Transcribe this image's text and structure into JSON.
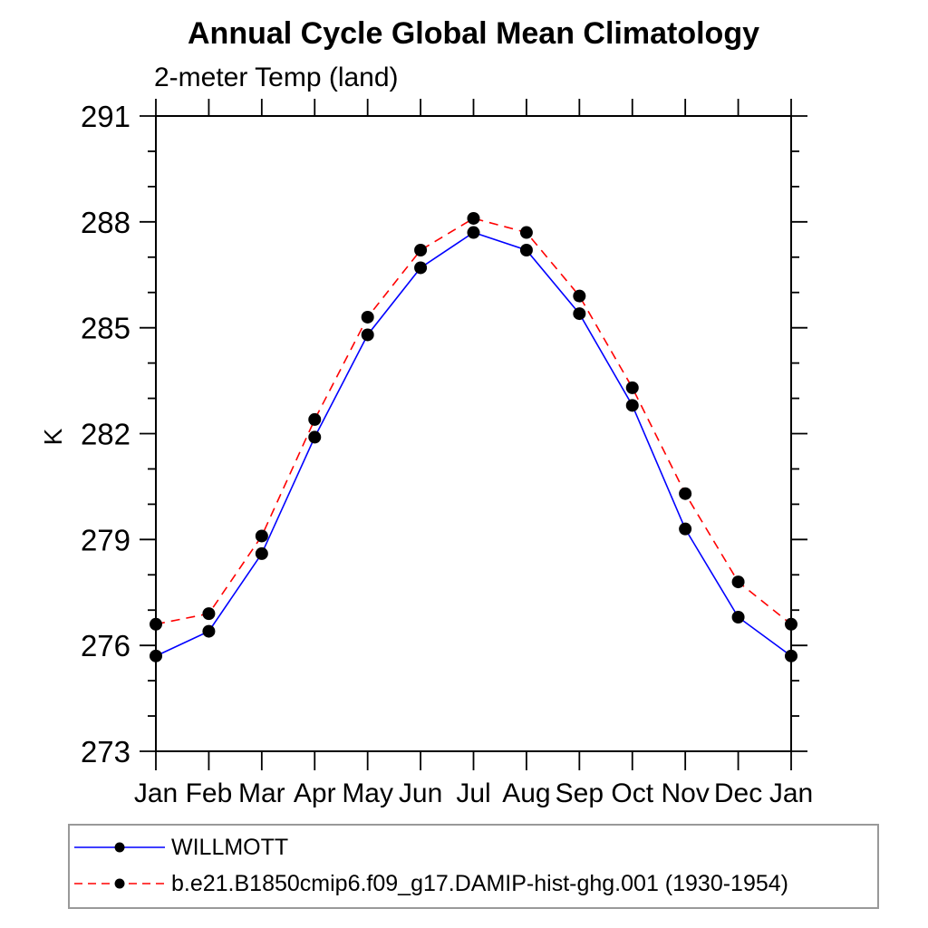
{
  "chart_data": {
    "type": "line",
    "title": "Annual Cycle Global Mean Climatology",
    "subtitle": "2-meter Temp (land)",
    "ylabel": "K",
    "x_tick_labels": [
      "Jan",
      "Feb",
      "Mar",
      "Apr",
      "May",
      "Jun",
      "Jul",
      "Aug",
      "Sep",
      "Oct",
      "Nov",
      "Dec",
      "Jan"
    ],
    "y_ticks_major": [
      273,
      276,
      279,
      282,
      285,
      288,
      291
    ],
    "y_minor_step": 1,
    "ylim": [
      273,
      291
    ],
    "grid": false,
    "legend_position": "bottom",
    "frame_color": "#000000",
    "legend_border_color": "#999999",
    "series": [
      {
        "name": "WILLMOTT",
        "color": "#0000ff",
        "line_style": "solid",
        "marker": "filled-circle",
        "marker_color": "#000000",
        "values": [
          275.7,
          276.4,
          278.6,
          281.9,
          284.8,
          286.7,
          287.7,
          287.2,
          285.4,
          282.8,
          279.3,
          276.8,
          275.7
        ]
      },
      {
        "name": "b.e21.B1850cmip6.f09_g17.DAMIP-hist-ghg.001 (1930-1954)",
        "color": "#ff0000",
        "line_style": "dashed",
        "marker": "filled-circle",
        "marker_color": "#000000",
        "values": [
          276.6,
          276.9,
          279.1,
          282.4,
          285.3,
          287.2,
          288.1,
          287.7,
          285.9,
          283.3,
          280.3,
          277.8,
          276.6
        ]
      }
    ]
  }
}
